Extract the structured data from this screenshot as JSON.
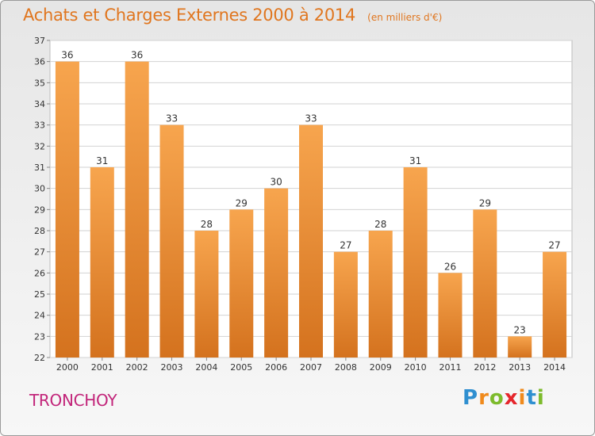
{
  "header": {
    "title": "Achats et Charges Externes 2000 à 2014",
    "subtitle": "(en milliers d'€)"
  },
  "commune": "TRONCHOY",
  "logo": {
    "letters": [
      "P",
      "r",
      "o",
      "x",
      "i",
      "t",
      "i"
    ],
    "colors": [
      "#2f8fd0",
      "#f08a1c",
      "#7dbb2c",
      "#e5262c",
      "#f08a1c",
      "#2f8fd0",
      "#7dbb2c"
    ]
  },
  "colors": {
    "bar_top": "#f7a54e",
    "bar_bottom": "#d4721e",
    "title": "#e0761f",
    "commune": "#c2257a"
  },
  "chart_data": {
    "type": "bar",
    "categories": [
      "2000",
      "2001",
      "2002",
      "2003",
      "2004",
      "2005",
      "2006",
      "2007",
      "2008",
      "2009",
      "2010",
      "2011",
      "2012",
      "2013",
      "2014"
    ],
    "values": [
      36,
      31,
      36,
      33,
      28,
      29,
      30,
      33,
      27,
      28,
      31,
      26,
      29,
      23,
      27
    ],
    "ylim": [
      22,
      37
    ],
    "yticks": [
      22,
      23,
      24,
      25,
      26,
      27,
      28,
      29,
      30,
      31,
      32,
      33,
      34,
      35,
      36,
      37
    ],
    "grid": true
  }
}
